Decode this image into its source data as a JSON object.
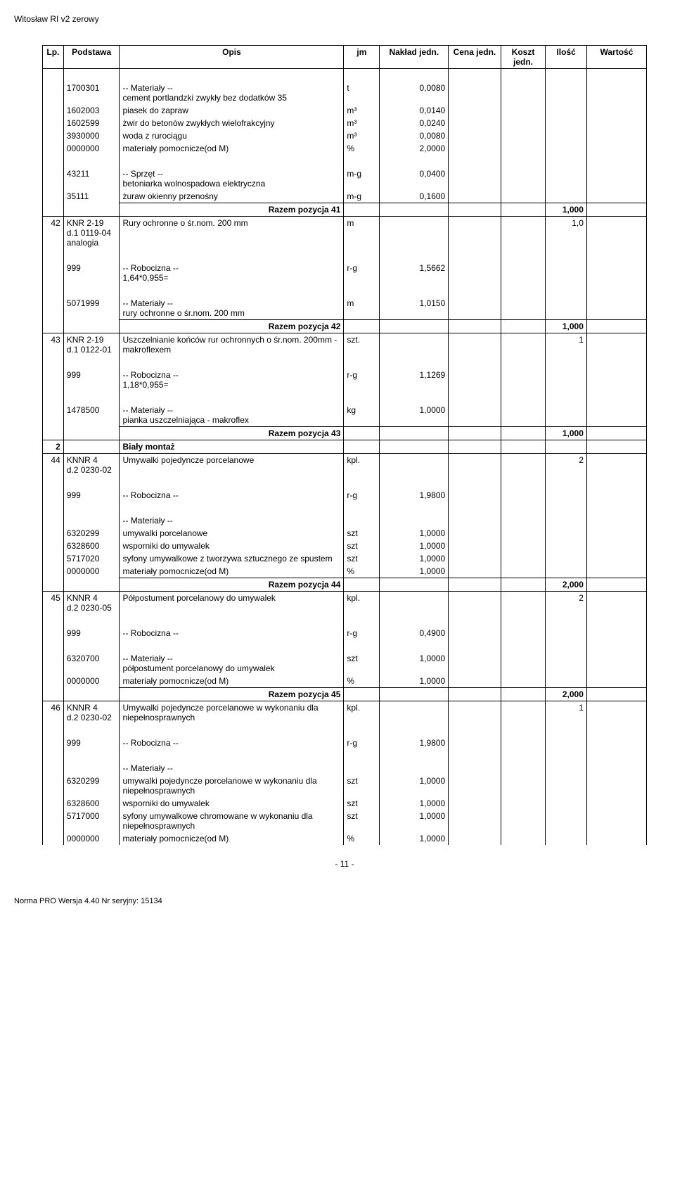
{
  "doc_title": "Witosław RI v2 zerowy",
  "page_number": "- 11 -",
  "footer": "Norma PRO Wersja 4.40 Nr seryjny: 15134",
  "headers": {
    "lp": "Lp.",
    "podstawa": "Podstawa",
    "opis": "Opis",
    "jm": "jm",
    "naklad": "Nakład jedn.",
    "cena": "Cena jedn.",
    "koszt": "Koszt jedn.",
    "ilosc": "Ilość",
    "wartosc": "Wartość"
  },
  "rows": [
    {
      "type": "blank"
    },
    {
      "type": "data",
      "podstawa": "1700301",
      "opis_pre": "-- Materiały --",
      "opis": "cement portlandzki zwykły bez dodatków 35",
      "jm": "t",
      "naklad": "0,0080"
    },
    {
      "type": "data",
      "podstawa": "1602003",
      "opis": "piasek do zapraw",
      "jm": "m³",
      "naklad": "0,0140"
    },
    {
      "type": "data",
      "podstawa": "1602599",
      "opis": "żwir do betonów zwykłych wielofrakcyjny",
      "jm": "m³",
      "naklad": "0,0240"
    },
    {
      "type": "data",
      "podstawa": "3930000",
      "opis": "woda z rurociągu",
      "jm": "m³",
      "naklad": "0,0080"
    },
    {
      "type": "data",
      "podstawa": "0000000",
      "opis": "materiały pomocnicze(od M)",
      "jm": "%",
      "naklad": "2,0000"
    },
    {
      "type": "blank"
    },
    {
      "type": "data",
      "podstawa": "43211",
      "opis_pre": "-- Sprzęt --",
      "opis": "betoniarka wolnospadowa elektryczna",
      "jm": "m-g",
      "naklad": "0,0400"
    },
    {
      "type": "data",
      "podstawa": "35111",
      "opis": "żuraw okienny przenośny",
      "jm": "m-g",
      "naklad": "0,1600"
    },
    {
      "type": "razem",
      "opis": "Razem pozycja 41",
      "ilosc": "1,000"
    },
    {
      "type": "position",
      "lp": "42",
      "podstawa": "KNR 2-19 0119-04 analogia",
      "podstawa2": "d.1",
      "opis": "Rury ochronne o śr.nom. 200 mm",
      "jm": "m",
      "ilosc": "1,0"
    },
    {
      "type": "blank"
    },
    {
      "type": "data",
      "podstawa": "999",
      "opis_pre": "-- Robocizna --",
      "opis": "1,64*0,955=",
      "jm": "r-g",
      "naklad": "1,5662"
    },
    {
      "type": "blank"
    },
    {
      "type": "data",
      "podstawa": "5071999",
      "opis_pre": "-- Materiały --",
      "opis": "rury ochronne o śr.nom. 200 mm",
      "jm": "m",
      "naklad": "1,0150"
    },
    {
      "type": "razem",
      "opis": "Razem pozycja 42",
      "ilosc": "1,000"
    },
    {
      "type": "position",
      "lp": "43",
      "podstawa": "KNR 2-19 0122-01",
      "podstawa2": "d.1",
      "opis": "Uszczelnianie końców rur ochronnych o śr.nom. 200mm - makroflexem",
      "jm": "szt.",
      "ilosc": "1"
    },
    {
      "type": "blank"
    },
    {
      "type": "data",
      "podstawa": "999",
      "opis_pre": "-- Robocizna --",
      "opis": "1,18*0,955=",
      "jm": "r-g",
      "naklad": "1,1269"
    },
    {
      "type": "blank"
    },
    {
      "type": "data",
      "podstawa": "1478500",
      "opis_pre": "-- Materiały --",
      "opis": "pianka uszczelniająca - makroflex",
      "jm": "kg",
      "naklad": "1,0000"
    },
    {
      "type": "razem",
      "opis": "Razem pozycja 43",
      "ilosc": "1,000"
    },
    {
      "type": "section",
      "lp": "2",
      "opis": "Biały montaż"
    },
    {
      "type": "position",
      "lp": "44",
      "podstawa": "KNNR 4 0230-02",
      "podstawa2": "d.2",
      "opis": "Umywalki pojedyncze porcelanowe",
      "jm": "kpl.",
      "ilosc": "2"
    },
    {
      "type": "blank"
    },
    {
      "type": "data",
      "podstawa": "999",
      "opis_pre": "-- Robocizna --",
      "opis": "",
      "jm": "r-g",
      "naklad": "1,9800"
    },
    {
      "type": "blank"
    },
    {
      "type": "heading",
      "opis": "-- Materiały --"
    },
    {
      "type": "data",
      "podstawa": "6320299",
      "opis": "umywalki porcelanowe",
      "jm": "szt",
      "naklad": "1,0000"
    },
    {
      "type": "data",
      "podstawa": "6328600",
      "opis": "wsporniki do umywalek",
      "jm": "szt",
      "naklad": "1,0000"
    },
    {
      "type": "data",
      "podstawa": "5717020",
      "opis": "syfony umywalkowe z tworzywa sztucznego ze spustem",
      "jm": "szt",
      "naklad": "1,0000"
    },
    {
      "type": "data",
      "podstawa": "0000000",
      "opis": "materiały pomocnicze(od M)",
      "jm": "%",
      "naklad": "1,0000"
    },
    {
      "type": "razem",
      "opis": "Razem pozycja 44",
      "ilosc": "2,000"
    },
    {
      "type": "position",
      "lp": "45",
      "podstawa": "KNNR 4 0230-05",
      "podstawa2": "d.2",
      "opis": "Półpostument porcelanowy do umywalek",
      "jm": "kpl.",
      "ilosc": "2"
    },
    {
      "type": "blank"
    },
    {
      "type": "data",
      "podstawa": "999",
      "opis_pre": "-- Robocizna --",
      "opis": "",
      "jm": "r-g",
      "naklad": "0,4900"
    },
    {
      "type": "blank"
    },
    {
      "type": "data",
      "podstawa": "6320700",
      "opis_pre": "-- Materiały --",
      "opis": "półpostument porcelanowy do umywalek",
      "jm": "szt",
      "naklad": "1,0000"
    },
    {
      "type": "data",
      "podstawa": "0000000",
      "opis": "materiały pomocnicze(od M)",
      "jm": "%",
      "naklad": "1,0000"
    },
    {
      "type": "razem",
      "opis": "Razem pozycja 45",
      "ilosc": "2,000"
    },
    {
      "type": "position",
      "lp": "46",
      "podstawa": "KNNR 4 0230-02",
      "podstawa2": "d.2",
      "opis": "Umywalki pojedyncze porcelanowe w wykonaniu dla niepełnosprawnych",
      "jm": "kpl.",
      "ilosc": "1"
    },
    {
      "type": "blank"
    },
    {
      "type": "data",
      "podstawa": "999",
      "opis_pre": "-- Robocizna --",
      "opis": "",
      "jm": "r-g",
      "naklad": "1,9800"
    },
    {
      "type": "blank"
    },
    {
      "type": "heading",
      "opis": "-- Materiały --"
    },
    {
      "type": "data",
      "podstawa": "6320299",
      "opis": "umywalki pojedyncze porcelanowe w wykonaniu dla niepełnosprawnych",
      "jm": "szt",
      "naklad": "1,0000"
    },
    {
      "type": "data",
      "podstawa": "6328600",
      "opis": "wsporniki do umywalek",
      "jm": "szt",
      "naklad": "1,0000"
    },
    {
      "type": "data",
      "podstawa": "5717000",
      "opis": "syfony umywalkowe chromowane w wykonaniu dla niepełnosprawnych",
      "jm": "szt",
      "naklad": "1,0000"
    },
    {
      "type": "data",
      "podstawa": "0000000",
      "opis": "materiały pomocnicze(od M)",
      "jm": "%",
      "naklad": "1,0000"
    }
  ]
}
